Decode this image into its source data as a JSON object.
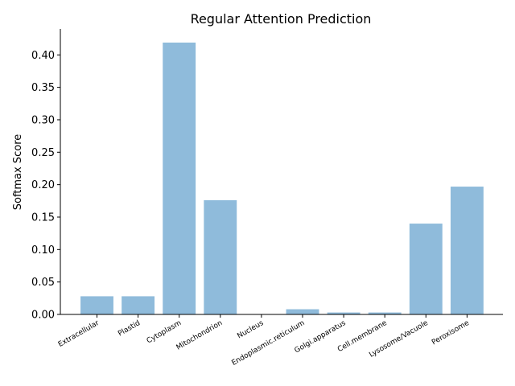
{
  "chart_data": {
    "type": "bar",
    "title": "Regular Attention Prediction",
    "xlabel": "",
    "ylabel": "Softmax Score",
    "categories": [
      "Extracellular",
      "Plastid",
      "Cytoplasm",
      "Mitochondrion",
      "Nucleus",
      "Endoplasmic.reticulum",
      "Golgi.apparatus",
      "Cell.membrane",
      "Lysosome/Vacuole",
      "Peroxisome"
    ],
    "values": [
      0.028,
      0.028,
      0.419,
      0.176,
      0.0,
      0.008,
      0.003,
      0.003,
      0.14,
      0.197
    ],
    "ylim": [
      0,
      0.44
    ],
    "yticks": [
      "0.00",
      "0.05",
      "0.10",
      "0.15",
      "0.20",
      "0.25",
      "0.30",
      "0.35",
      "0.40"
    ],
    "bar_color": "#8fbbdb",
    "grid": false
  }
}
